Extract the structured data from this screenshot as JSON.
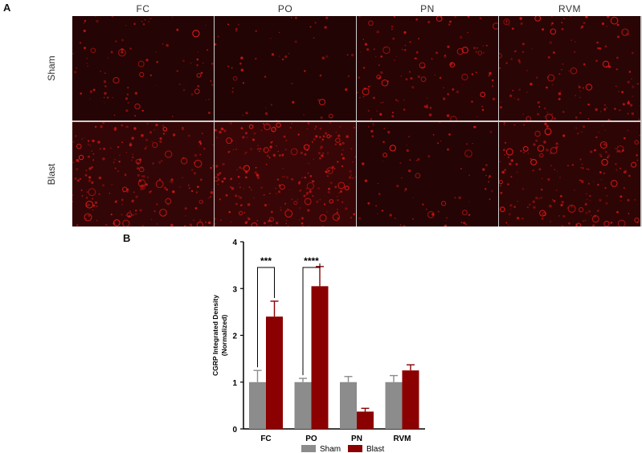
{
  "panels": {
    "a_label": "A",
    "b_label": "B"
  },
  "micrograph_grid": {
    "columns": [
      "FC",
      "PO",
      "PN",
      "RVM"
    ],
    "rows": [
      "Sham",
      "Blast"
    ],
    "stain_color": "#e01818",
    "background_color": "#140303"
  },
  "chart_data": {
    "type": "bar",
    "categories": [
      "FC",
      "PO",
      "PN",
      "RVM"
    ],
    "series": [
      {
        "name": "Sham",
        "color": "#8c8c8c",
        "values": [
          1.0,
          1.0,
          1.0,
          1.0
        ],
        "errors": [
          0.25,
          0.08,
          0.12,
          0.14
        ]
      },
      {
        "name": "Blast",
        "color": "#8b0000",
        "values": [
          2.4,
          3.05,
          0.37,
          1.25
        ],
        "errors": [
          0.33,
          0.42,
          0.07,
          0.12
        ]
      }
    ],
    "ylabel_line1": "CGRP Integrated Density",
    "ylabel_line2": "(Normalized)",
    "ylim": [
      0,
      4
    ],
    "yticks": [
      "0",
      "1",
      "2",
      "3",
      "4"
    ],
    "grid": false,
    "legend": "bottom",
    "significance": [
      {
        "category": "FC",
        "label": "***"
      },
      {
        "category": "PO",
        "label": "****"
      }
    ]
  }
}
